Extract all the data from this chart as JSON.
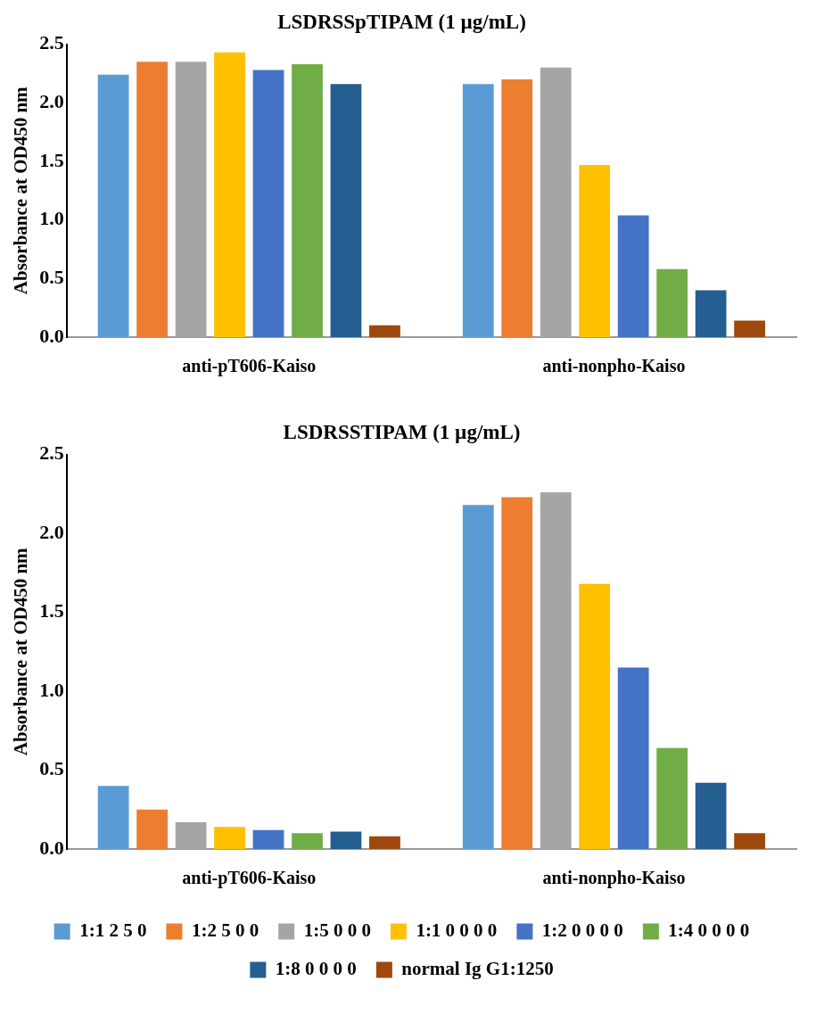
{
  "chart_data": [
    {
      "type": "bar",
      "title": "LSDRSSpTIPAM (1 µg/mL)",
      "ylabel": "Absorbance at OD450 nm",
      "categories": [
        "anti-pT606-Kaiso",
        "anti-nonpho-Kaiso"
      ],
      "ylim": [
        0,
        2.5
      ],
      "yticks": [
        {
          "value": 0,
          "label": "0.0"
        },
        {
          "value": 0.5,
          "label": "0.5"
        },
        {
          "value": 1,
          "label": "1.0"
        },
        {
          "value": 1.5,
          "label": "1.5"
        },
        {
          "value": 2,
          "label": "2.0"
        },
        {
          "value": 2.5,
          "label": "2.5"
        }
      ],
      "grid": false,
      "legend": false,
      "series": [
        {
          "color": "#5b9bd5",
          "values": [
            2.24,
            2.16
          ]
        },
        {
          "color": "#ed7d31",
          "values": [
            2.35,
            2.2
          ]
        },
        {
          "color": "#a5a5a5",
          "values": [
            2.35,
            2.3
          ]
        },
        {
          "color": "#ffc000",
          "values": [
            2.43,
            1.47
          ]
        },
        {
          "color": "#4472c4",
          "values": [
            2.28,
            1.04
          ]
        },
        {
          "color": "#70ad47",
          "values": [
            2.33,
            0.58
          ]
        },
        {
          "color": "#255e91",
          "values": [
            2.16,
            0.4
          ]
        },
        {
          "color": "#9e480e",
          "values": [
            0.1,
            0.14
          ]
        }
      ]
    },
    {
      "type": "bar",
      "title": "LSDRSSTIPAM (1 µg/mL)",
      "ylabel": "Absorbance at OD450 nm",
      "categories": [
        "anti-pT606-Kaiso",
        "anti-nonpho-Kaiso"
      ],
      "ylim": [
        0,
        2.5
      ],
      "yticks": [
        {
          "value": 0,
          "label": "0.0"
        },
        {
          "value": 0.5,
          "label": "0.5"
        },
        {
          "value": 1,
          "label": "1.0"
        },
        {
          "value": 1.5,
          "label": "1.5"
        },
        {
          "value": 2,
          "label": "2.0"
        },
        {
          "value": 2.5,
          "label": "2.5"
        }
      ],
      "grid": false,
      "legend": "bottom",
      "series": [
        {
          "name": "1:1 2 5 0",
          "color": "#5b9bd5",
          "values": [
            0.4,
            2.18
          ]
        },
        {
          "name": "1:2 5 0 0",
          "color": "#ed7d31",
          "values": [
            0.25,
            2.23
          ]
        },
        {
          "name": "1:5 0 0 0",
          "color": "#a5a5a5",
          "values": [
            0.17,
            2.26
          ]
        },
        {
          "name": "1:1 0 0 0 0",
          "color": "#ffc000",
          "values": [
            0.14,
            1.68
          ]
        },
        {
          "name": "1:2 0 0 0 0",
          "color": "#4472c4",
          "values": [
            0.12,
            1.15
          ]
        },
        {
          "name": "1:4 0 0 0 0",
          "color": "#70ad47",
          "values": [
            0.1,
            0.64
          ]
        },
        {
          "name": "1:8 0 0 0 0",
          "color": "#255e91",
          "values": [
            0.11,
            0.42
          ]
        },
        {
          "name": "normal Ig G1:1250",
          "color": "#9e480e",
          "values": [
            0.08,
            0.1
          ]
        }
      ]
    }
  ]
}
